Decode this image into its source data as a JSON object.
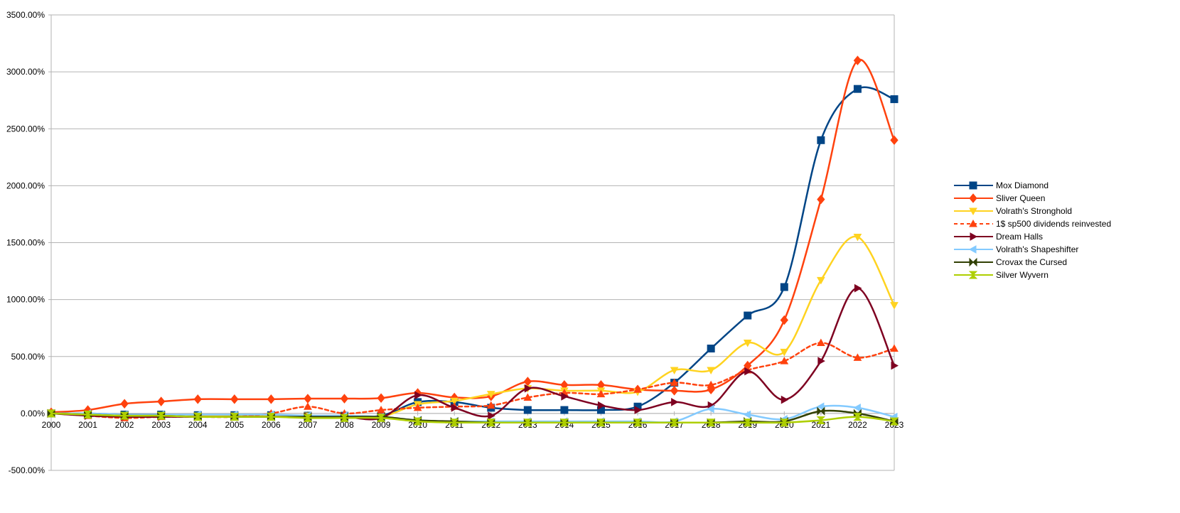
{
  "chart_data": {
    "type": "line",
    "x": [
      2000,
      2001,
      2002,
      2003,
      2004,
      2005,
      2006,
      2007,
      2008,
      2009,
      2010,
      2011,
      2012,
      2013,
      2014,
      2015,
      2016,
      2017,
      2018,
      2019,
      2020,
      2021,
      2022,
      2023
    ],
    "x_tick_labels": [
      "2000",
      "2001",
      "2002",
      "2003",
      "2004",
      "2005",
      "2006",
      "2007",
      "2008",
      "2009",
      "2010",
      "2011",
      "2012",
      "2013",
      "2014",
      "2015",
      "2016",
      "2017",
      "2018",
      "2019",
      "2020",
      "2021",
      "2022",
      "2023"
    ],
    "y_ticks": [
      -500,
      0,
      500,
      1000,
      1500,
      2000,
      2500,
      3000,
      3500
    ],
    "y_tick_labels": [
      "-500.00%",
      "0.00%",
      "500.00%",
      "1000.00%",
      "1500.00%",
      "2000.00%",
      "2500.00%",
      "3000.00%",
      "3500.00%"
    ],
    "ylim": [
      -500,
      3500
    ],
    "grid": "horizontal",
    "legend_position": "right",
    "series": [
      {
        "name": "Mox Diamond",
        "color": "#004586",
        "marker": "square",
        "dashed": false,
        "values": [
          0,
          0,
          -10,
          -10,
          -15,
          -15,
          -15,
          -20,
          -20,
          -20,
          100,
          100,
          50,
          30,
          30,
          30,
          60,
          270,
          570,
          860,
          1110,
          2400,
          2850,
          2760
        ]
      },
      {
        "name": "Sliver Queen",
        "color": "#ff420e",
        "marker": "diamond",
        "dashed": false,
        "values": [
          10,
          30,
          85,
          105,
          125,
          125,
          125,
          130,
          130,
          135,
          180,
          140,
          150,
          280,
          250,
          250,
          210,
          200,
          210,
          420,
          820,
          1880,
          3100,
          2400
        ]
      },
      {
        "name": "Volrath's Stronghold",
        "color": "#ffd320",
        "marker": "triangle-down",
        "dashed": false,
        "values": [
          0,
          -10,
          -20,
          -20,
          -20,
          -20,
          -20,
          -20,
          -30,
          -30,
          80,
          110,
          170,
          220,
          200,
          200,
          190,
          380,
          380,
          620,
          540,
          1170,
          1550,
          950
        ]
      },
      {
        "name": "1$ sp500 dividends reinvested",
        "color": "#ff420e",
        "marker": "triangle-up",
        "dashed": true,
        "values": [
          0,
          -20,
          -40,
          -30,
          -30,
          -30,
          0,
          60,
          0,
          30,
          50,
          60,
          70,
          140,
          180,
          170,
          210,
          270,
          250,
          380,
          460,
          620,
          490,
          570
        ]
      },
      {
        "name": "Dream Halls",
        "color": "#7e0021",
        "marker": "triangle-right",
        "dashed": false,
        "values": [
          0,
          -20,
          -30,
          -30,
          -30,
          -30,
          -30,
          -30,
          -30,
          -40,
          160,
          50,
          -20,
          220,
          150,
          70,
          30,
          100,
          70,
          370,
          120,
          460,
          1100,
          420
        ]
      },
      {
        "name": "Volrath's Shapeshifter",
        "color": "#83caff",
        "marker": "triangle-left",
        "dashed": false,
        "values": [
          0,
          0,
          -10,
          -10,
          -10,
          -10,
          -10,
          -20,
          -20,
          -30,
          -60,
          -70,
          -70,
          -70,
          -70,
          -70,
          -70,
          -70,
          40,
          -10,
          -50,
          60,
          50,
          -30
        ]
      },
      {
        "name": "Crovax the Cursed",
        "color": "#314004",
        "marker": "bowtie",
        "dashed": false,
        "values": [
          0,
          -10,
          -20,
          -20,
          -30,
          -30,
          -30,
          -30,
          -30,
          -30,
          -60,
          -70,
          -80,
          -80,
          -80,
          -80,
          -80,
          -80,
          -80,
          -70,
          -70,
          20,
          0,
          -70
        ]
      },
      {
        "name": "Silver Wyvern",
        "color": "#aecf00",
        "marker": "hourglass",
        "dashed": false,
        "values": [
          0,
          -10,
          -20,
          -20,
          -30,
          -30,
          -30,
          -40,
          -40,
          -40,
          -70,
          -80,
          -80,
          -80,
          -80,
          -80,
          -80,
          -80,
          -80,
          -80,
          -80,
          -60,
          -30,
          -70
        ]
      }
    ]
  }
}
